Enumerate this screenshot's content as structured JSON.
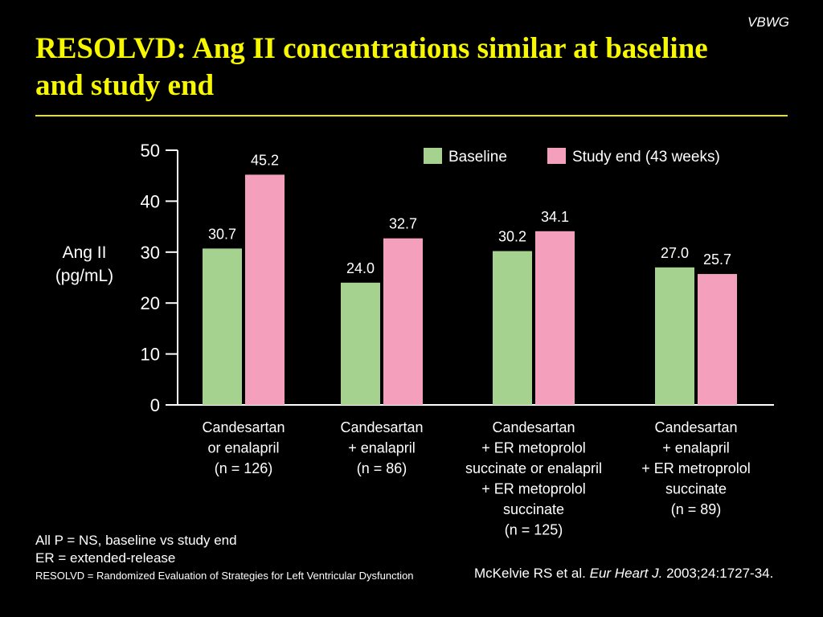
{
  "header": {
    "brand": "VBWG",
    "title": "RESOLVD: Ang II concentrations similar at baseline and study end"
  },
  "chart_data": {
    "type": "bar",
    "ylabel": "Ang II\n(pg/mL)",
    "ylim": [
      0,
      50
    ],
    "yticks": [
      0,
      10,
      20,
      30,
      40,
      50
    ],
    "legend_position": "top-right",
    "categories": [
      "Candesartan\nor enalapril\n(n = 126)",
      "Candesartan\n+ enalapril\n(n = 86)",
      "Candesartan\n+ ER metoprolol\nsuccinate or enalapril\n+ ER metoprolol\nsuccinate\n(n = 125)",
      "Candesartan\n+ enalapril\n+ ER metroprolol\nsuccinate\n(n = 89)"
    ],
    "series": [
      {
        "name": "Baseline",
        "color": "#a5d38f",
        "values": [
          30.7,
          24.0,
          30.2,
          27.0
        ],
        "labels": [
          "30.7",
          "24.0",
          "30.2",
          "27.0"
        ]
      },
      {
        "name": "Study end (43 weeks)",
        "color": "#f4a0bd",
        "values": [
          45.2,
          32.7,
          34.1,
          25.7
        ],
        "labels": [
          "45.2",
          "32.7",
          "34.1",
          "25.7"
        ]
      }
    ]
  },
  "footnotes": {
    "line1": "All P = NS, baseline vs study end",
    "line2": "ER = extended-release",
    "line3": "RESOLVD = Randomized Evaluation of Strategies for Left Ventricular Dysfunction"
  },
  "citation": {
    "authors": "McKelvie RS et al.",
    "journal": "Eur Heart J.",
    "details": "2003;24:1727-34."
  }
}
